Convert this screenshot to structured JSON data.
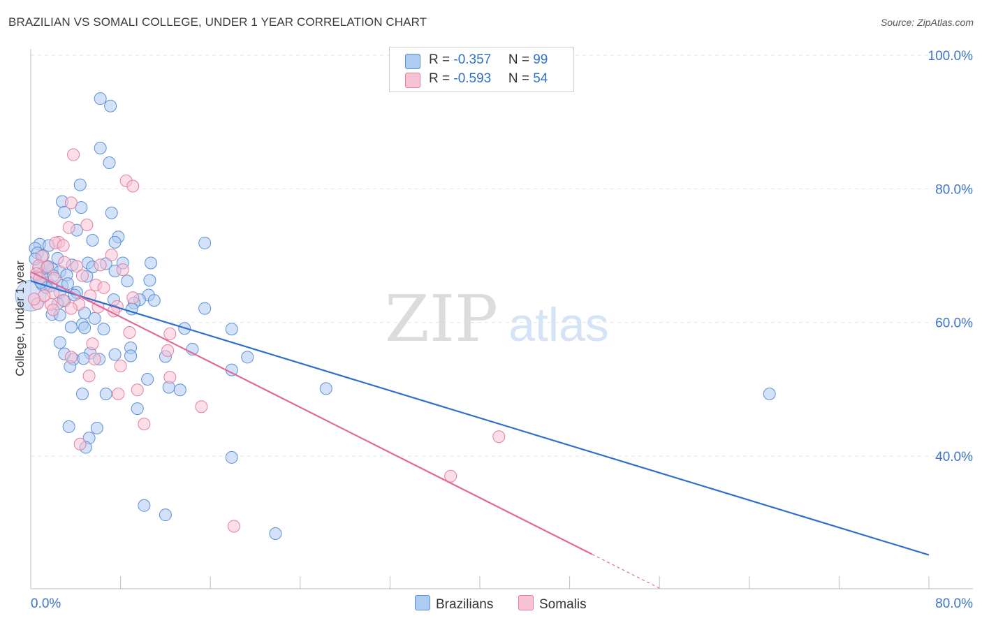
{
  "title": "BRAZILIAN VS SOMALI COLLEGE, UNDER 1 YEAR CORRELATION CHART",
  "source": "Source: ZipAtlas.com",
  "watermark": {
    "zip": "ZIP",
    "atlas": "atlas"
  },
  "legend": {
    "rows": [
      {
        "r_label": "R = ",
        "r_value": "-0.357",
        "n_label": "N = ",
        "n_value": "99"
      },
      {
        "r_label": "R = ",
        "r_value": "-0.593",
        "n_label": "N = ",
        "n_value": "54"
      }
    ]
  },
  "bottom_legend": {
    "brazilians": "Brazilians",
    "somalis": "Somalis"
  },
  "colors": {
    "blue_fill": "#aecbf2",
    "blue_stroke": "#5b8fd6",
    "blue_line": "#2f6fce",
    "pink_fill": "#f7c3d4",
    "pink_stroke": "#e27fa2",
    "pink_line": "#e0689a",
    "tick_label": "#3d73c9",
    "grid": "#e3e3e3"
  },
  "chart_data": {
    "type": "scatter",
    "title": "BRAZILIAN VS SOMALI COLLEGE, UNDER 1 YEAR CORRELATION CHART",
    "xlabel": "",
    "ylabel": "College, Under 1 year",
    "xlim": [
      0,
      80
    ],
    "ylim": [
      20,
      104
    ],
    "x_tick_labels": [
      "0.0%",
      "80.0%"
    ],
    "y_ticks": [
      40,
      60,
      80,
      100
    ],
    "y_tick_labels": [
      "40.0%",
      "60.0%",
      "80.0%",
      "100.0%"
    ],
    "grid": true,
    "legend_position": "top-center",
    "series": [
      {
        "name": "Brazilians",
        "r": -0.357,
        "n": 99,
        "trend": {
          "x": [
            0,
            80
          ],
          "y": [
            66.2,
            25.2
          ]
        },
        "points": [
          [
            6.2,
            93.5
          ],
          [
            7.1,
            92.4
          ],
          [
            6.2,
            86.1
          ],
          [
            7.0,
            83.9
          ],
          [
            4.4,
            80.6
          ],
          [
            2.8,
            78.1
          ],
          [
            4.5,
            77.2
          ],
          [
            3.0,
            76.5
          ],
          [
            7.2,
            76.4
          ],
          [
            4.1,
            73.8
          ],
          [
            7.8,
            72.8
          ],
          [
            5.5,
            72.3
          ],
          [
            7.5,
            72.0
          ],
          [
            15.5,
            71.9
          ],
          [
            0.8,
            71.7
          ],
          [
            1.6,
            71.5
          ],
          [
            0.4,
            71.1
          ],
          [
            0.6,
            70.4
          ],
          [
            1.1,
            70.0
          ],
          [
            2.4,
            69.6
          ],
          [
            10.7,
            68.9
          ],
          [
            5.1,
            68.9
          ],
          [
            6.7,
            68.8
          ],
          [
            8.2,
            68.9
          ],
          [
            3.7,
            68.6
          ],
          [
            5.5,
            68.3
          ],
          [
            7.5,
            67.7
          ],
          [
            1.4,
            68.2
          ],
          [
            0.7,
            68.2
          ],
          [
            1.9,
            68.0
          ],
          [
            2.6,
            67.6
          ],
          [
            3.2,
            67.1
          ],
          [
            1.0,
            67.3
          ],
          [
            5.0,
            66.9
          ],
          [
            0.5,
            66.8
          ],
          [
            1.4,
            66.4
          ],
          [
            10.6,
            66.3
          ],
          [
            8.6,
            66.2
          ],
          [
            1.0,
            65.7
          ],
          [
            2.8,
            65.5
          ],
          [
            1.8,
            65.5
          ],
          [
            1.4,
            65.2
          ],
          [
            2.6,
            64.5
          ],
          [
            4.1,
            64.5
          ],
          [
            3.9,
            64.1
          ],
          [
            10.5,
            64.1
          ],
          [
            9.7,
            63.4
          ],
          [
            11.0,
            63.3
          ],
          [
            3.0,
            63.2
          ],
          [
            7.4,
            63.4
          ],
          [
            9.2,
            62.9
          ],
          [
            2.4,
            62.8
          ],
          [
            9.0,
            62.0
          ],
          [
            15.5,
            62.1
          ],
          [
            4.8,
            61.4
          ],
          [
            1.9,
            61.2
          ],
          [
            2.6,
            61.1
          ],
          [
            5.7,
            60.6
          ],
          [
            4.6,
            59.7
          ],
          [
            3.6,
            59.3
          ],
          [
            4.8,
            59.2
          ],
          [
            6.5,
            59.0
          ],
          [
            13.7,
            59.1
          ],
          [
            17.9,
            59.0
          ],
          [
            2.6,
            57.0
          ],
          [
            8.9,
            56.2
          ],
          [
            14.4,
            56.0
          ],
          [
            5.3,
            55.4
          ],
          [
            3.0,
            55.3
          ],
          [
            7.5,
            55.2
          ],
          [
            8.9,
            55.0
          ],
          [
            12.0,
            54.9
          ],
          [
            19.3,
            54.8
          ],
          [
            3.8,
            54.5
          ],
          [
            4.7,
            54.6
          ],
          [
            6.1,
            54.5
          ],
          [
            3.5,
            53.4
          ],
          [
            17.9,
            52.9
          ],
          [
            10.4,
            51.5
          ],
          [
            12.3,
            50.3
          ],
          [
            13.3,
            49.9
          ],
          [
            26.3,
            50.1
          ],
          [
            65.8,
            49.3
          ],
          [
            4.6,
            49.3
          ],
          [
            6.7,
            49.3
          ],
          [
            9.5,
            47.1
          ],
          [
            3.4,
            44.4
          ],
          [
            5.9,
            44.2
          ],
          [
            5.2,
            42.7
          ],
          [
            4.9,
            41.3
          ],
          [
            17.9,
            39.8
          ],
          [
            10.1,
            32.6
          ],
          [
            12.0,
            31.2
          ],
          [
            21.8,
            28.4
          ],
          [
            0.4,
            69.5
          ],
          [
            1.5,
            68.4
          ],
          [
            2.0,
            67.0
          ],
          [
            0.9,
            66.0
          ],
          [
            3.3,
            65.8
          ]
        ]
      },
      {
        "name": "Somalis",
        "r": -0.593,
        "n": 54,
        "trend": {
          "x": [
            0,
            50
          ],
          "y": [
            67.6,
            25.3
          ]
        },
        "points": [
          [
            3.8,
            85.1
          ],
          [
            8.5,
            81.2
          ],
          [
            9.1,
            80.4
          ],
          [
            3.6,
            77.9
          ],
          [
            5.0,
            74.6
          ],
          [
            3.4,
            74.2
          ],
          [
            2.5,
            72.0
          ],
          [
            2.2,
            71.9
          ],
          [
            2.9,
            71.5
          ],
          [
            7.2,
            70.1
          ],
          [
            1.0,
            69.9
          ],
          [
            6.2,
            68.6
          ],
          [
            0.7,
            68.5
          ],
          [
            4.1,
            68.4
          ],
          [
            1.5,
            68.3
          ],
          [
            8.2,
            67.9
          ],
          [
            0.5,
            67.3
          ],
          [
            0.8,
            66.6
          ],
          [
            2.1,
            66.6
          ],
          [
            5.8,
            65.6
          ],
          [
            6.5,
            65.2
          ],
          [
            2.0,
            64.4
          ],
          [
            5.3,
            64.0
          ],
          [
            9.1,
            63.7
          ],
          [
            2.9,
            63.3
          ],
          [
            0.6,
            62.8
          ],
          [
            1.8,
            62.7
          ],
          [
            4.3,
            62.7
          ],
          [
            7.7,
            62.4
          ],
          [
            6.0,
            62.3
          ],
          [
            3.6,
            62.1
          ],
          [
            2.0,
            61.9
          ],
          [
            7.4,
            61.7
          ],
          [
            8.8,
            58.5
          ],
          [
            12.4,
            58.3
          ],
          [
            5.5,
            56.8
          ],
          [
            12.2,
            55.8
          ],
          [
            5.7,
            54.5
          ],
          [
            8.0,
            53.5
          ],
          [
            3.6,
            54.8
          ],
          [
            5.2,
            52.0
          ],
          [
            12.4,
            51.8
          ],
          [
            9.5,
            49.9
          ],
          [
            7.8,
            49.3
          ],
          [
            15.2,
            47.4
          ],
          [
            10.1,
            44.8
          ],
          [
            41.7,
            42.9
          ],
          [
            4.4,
            41.8
          ],
          [
            37.4,
            37.0
          ],
          [
            18.1,
            29.5
          ],
          [
            3.0,
            69.0
          ],
          [
            1.2,
            64.0
          ],
          [
            4.6,
            67.0
          ],
          [
            0.3,
            63.5
          ]
        ]
      }
    ]
  }
}
